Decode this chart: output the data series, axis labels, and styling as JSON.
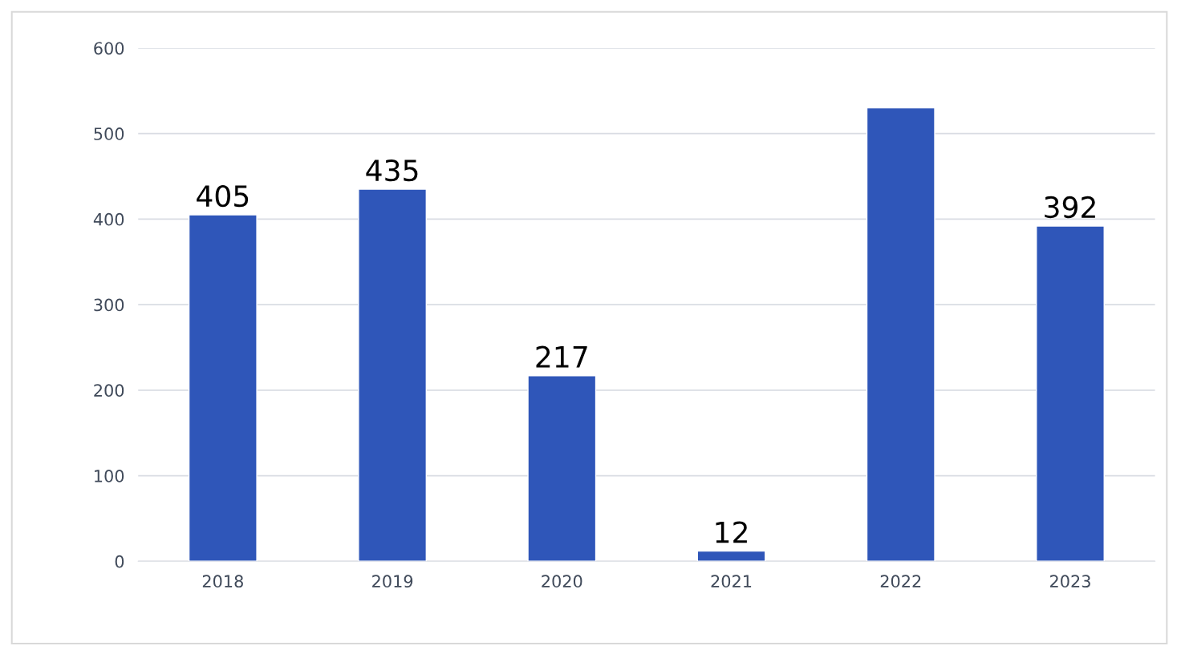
{
  "chart_data": {
    "type": "bar",
    "categories": [
      "2018",
      "2019",
      "2020",
      "2021",
      "2022",
      "2023"
    ],
    "values": [
      405,
      435,
      217,
      12,
      530,
      392
    ],
    "value_labels": [
      "405",
      "435",
      "217",
      "12",
      null,
      "392"
    ],
    "color": "#2f56b9",
    "ylim": [
      0,
      600
    ],
    "yticks": [
      0,
      100,
      200,
      300,
      400,
      500,
      600
    ],
    "grid": "y",
    "legend": false
  }
}
